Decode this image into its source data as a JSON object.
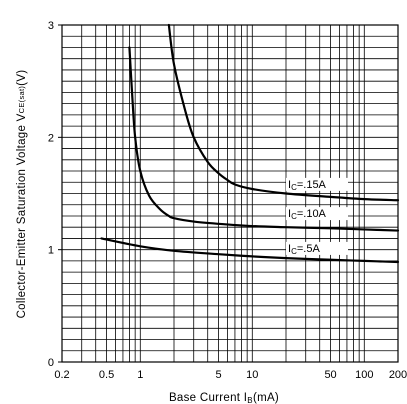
{
  "chart_data": {
    "type": "line",
    "x_scale": "log",
    "xlim": [
      0.2,
      200
    ],
    "ylim": [
      0,
      3
    ],
    "xticks": [
      {
        "value": 0.2,
        "label": "0.2"
      },
      {
        "value": 0.5,
        "label": "0.5"
      },
      {
        "value": 1,
        "label": "1"
      },
      {
        "value": 5,
        "label": "5"
      },
      {
        "value": 10,
        "label": "10"
      },
      {
        "value": 50,
        "label": "50"
      },
      {
        "value": 100,
        "label": "100"
      },
      {
        "value": 200,
        "label": "200"
      }
    ],
    "yticks": [
      {
        "value": 0,
        "label": "0"
      },
      {
        "value": 1,
        "label": "1"
      },
      {
        "value": 2,
        "label": "2"
      },
      {
        "value": 3,
        "label": "3"
      }
    ],
    "xlabel": {
      "prefix": "Base Current I",
      "sub": "B",
      "suffix": "(mA)"
    },
    "ylabel": {
      "prefix": "Collector-Emitter Saturation Voltage V",
      "sub": "CE(sat)",
      "suffix": "(V)"
    },
    "grid": true,
    "series": [
      {
        "name": {
          "prefix": "I",
          "sub": "C",
          "suffix": "=.15A"
        },
        "x": [
          1.8,
          2,
          2.5,
          3,
          4,
          5,
          6,
          7,
          10,
          20,
          50,
          100,
          200
        ],
        "y": [
          3.0,
          2.65,
          2.25,
          2.0,
          1.78,
          1.68,
          1.62,
          1.58,
          1.54,
          1.5,
          1.47,
          1.45,
          1.44
        ]
      },
      {
        "name": {
          "prefix": "I",
          "sub": "C",
          "suffix": "=.10A"
        },
        "x": [
          0.8,
          0.85,
          0.9,
          1,
          1.2,
          1.5,
          1.8,
          2,
          3,
          5,
          10,
          20,
          50,
          100,
          200
        ],
        "y": [
          2.8,
          2.35,
          2.0,
          1.7,
          1.48,
          1.36,
          1.3,
          1.28,
          1.25,
          1.23,
          1.21,
          1.2,
          1.19,
          1.18,
          1.17
        ]
      },
      {
        "name": {
          "prefix": "I",
          "sub": "C",
          "suffix": "=.5A"
        },
        "x": [
          0.45,
          1,
          2,
          5,
          10,
          20,
          50,
          100,
          200
        ],
        "y": [
          1.1,
          1.03,
          0.99,
          0.96,
          0.94,
          0.925,
          0.91,
          0.9,
          0.89
        ]
      }
    ]
  }
}
